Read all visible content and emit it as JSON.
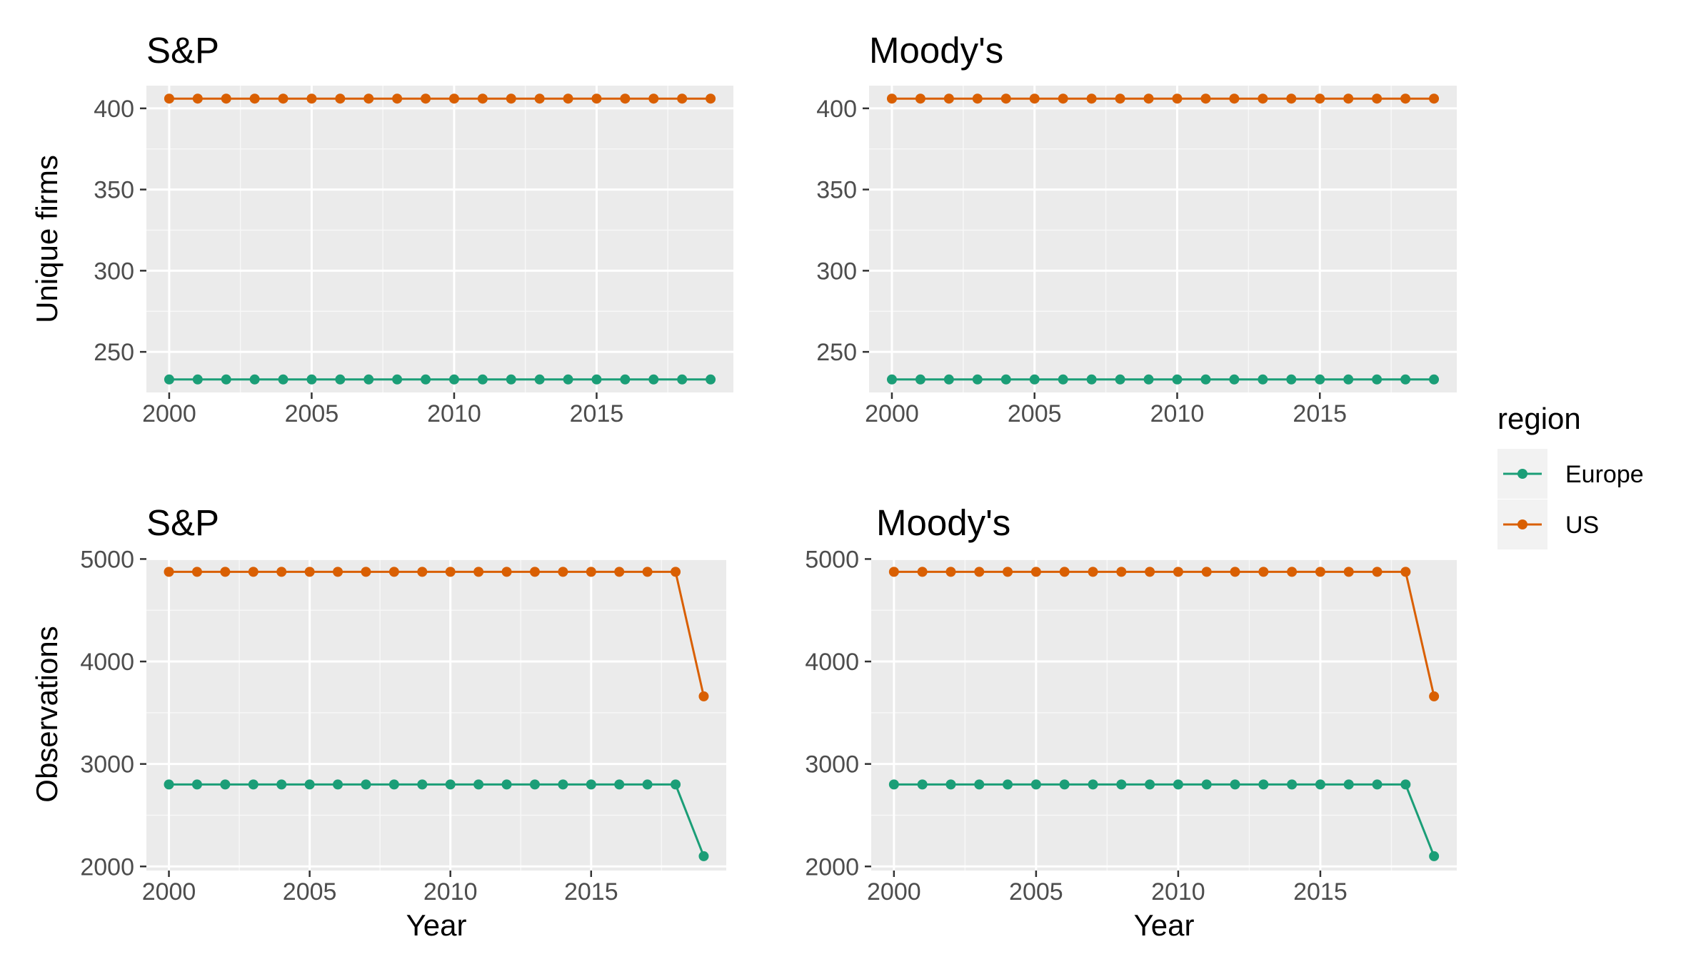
{
  "chart_data": [
    {
      "type": "line",
      "title": "S&P",
      "xlabel": "",
      "ylabel": "Unique firms",
      "xlim": [
        1999.2,
        2019.8
      ],
      "ylim": [
        225,
        414
      ],
      "xticks": [
        2000,
        2005,
        2010,
        2015
      ],
      "yticks": [
        250,
        300,
        350,
        400
      ],
      "grid": true,
      "x": [
        2000,
        2001,
        2002,
        2003,
        2004,
        2005,
        2006,
        2007,
        2008,
        2009,
        2010,
        2011,
        2012,
        2013,
        2014,
        2015,
        2016,
        2017,
        2018,
        2019
      ],
      "series": [
        {
          "name": "Europe",
          "color": "#1b9e77",
          "values": [
            233,
            233,
            233,
            233,
            233,
            233,
            233,
            233,
            233,
            233,
            233,
            233,
            233,
            233,
            233,
            233,
            233,
            233,
            233,
            233
          ]
        },
        {
          "name": "US",
          "color": "#d95f02",
          "values": [
            406,
            406,
            406,
            406,
            406,
            406,
            406,
            406,
            406,
            406,
            406,
            406,
            406,
            406,
            406,
            406,
            406,
            406,
            406,
            406
          ]
        }
      ]
    },
    {
      "type": "line",
      "title": "Moody's",
      "xlabel": "",
      "ylabel": "",
      "xlim": [
        1999.2,
        2019.8
      ],
      "ylim": [
        225,
        414
      ],
      "xticks": [
        2000,
        2005,
        2010,
        2015
      ],
      "yticks": [
        250,
        300,
        350,
        400
      ],
      "grid": true,
      "x": [
        2000,
        2001,
        2002,
        2003,
        2004,
        2005,
        2006,
        2007,
        2008,
        2009,
        2010,
        2011,
        2012,
        2013,
        2014,
        2015,
        2016,
        2017,
        2018,
        2019
      ],
      "series": [
        {
          "name": "Europe",
          "color": "#1b9e77",
          "values": [
            233,
            233,
            233,
            233,
            233,
            233,
            233,
            233,
            233,
            233,
            233,
            233,
            233,
            233,
            233,
            233,
            233,
            233,
            233,
            233
          ]
        },
        {
          "name": "US",
          "color": "#d95f02",
          "values": [
            406,
            406,
            406,
            406,
            406,
            406,
            406,
            406,
            406,
            406,
            406,
            406,
            406,
            406,
            406,
            406,
            406,
            406,
            406,
            406
          ]
        }
      ]
    },
    {
      "type": "line",
      "title": "S&P",
      "xlabel": "Year",
      "ylabel": "Observations",
      "xlim": [
        1999.2,
        2019.8
      ],
      "ylim": [
        1960,
        5010
      ],
      "xticks": [
        2000,
        2005,
        2010,
        2015
      ],
      "yticks": [
        2000,
        3000,
        4000,
        5000
      ],
      "grid": true,
      "x": [
        2000,
        2001,
        2002,
        2003,
        2004,
        2005,
        2006,
        2007,
        2008,
        2009,
        2010,
        2011,
        2012,
        2013,
        2014,
        2015,
        2016,
        2017,
        2018,
        2019
      ],
      "series": [
        {
          "name": "Europe",
          "color": "#1b9e77",
          "values": [
            2800,
            2800,
            2800,
            2800,
            2800,
            2800,
            2800,
            2800,
            2800,
            2800,
            2800,
            2800,
            2800,
            2800,
            2800,
            2800,
            2800,
            2800,
            2800,
            2100
          ]
        },
        {
          "name": "US",
          "color": "#d95f02",
          "values": [
            4875,
            4875,
            4875,
            4875,
            4875,
            4875,
            4875,
            4875,
            4875,
            4875,
            4875,
            4875,
            4875,
            4875,
            4875,
            4875,
            4875,
            4875,
            4875,
            3660
          ]
        }
      ]
    },
    {
      "type": "line",
      "title": "Moody's",
      "xlabel": "Year",
      "ylabel": "",
      "xlim": [
        1999.2,
        2019.8
      ],
      "ylim": [
        1960,
        5010
      ],
      "xticks": [
        2000,
        2005,
        2010,
        2015
      ],
      "yticks": [
        2000,
        3000,
        4000,
        5000
      ],
      "grid": true,
      "x": [
        2000,
        2001,
        2002,
        2003,
        2004,
        2005,
        2006,
        2007,
        2008,
        2009,
        2010,
        2011,
        2012,
        2013,
        2014,
        2015,
        2016,
        2017,
        2018,
        2019
      ],
      "series": [
        {
          "name": "Europe",
          "color": "#1b9e77",
          "values": [
            2800,
            2800,
            2800,
            2800,
            2800,
            2800,
            2800,
            2800,
            2800,
            2800,
            2800,
            2800,
            2800,
            2800,
            2800,
            2800,
            2800,
            2800,
            2800,
            2100
          ]
        },
        {
          "name": "US",
          "color": "#d95f02",
          "values": [
            4875,
            4875,
            4875,
            4875,
            4875,
            4875,
            4875,
            4875,
            4875,
            4875,
            4875,
            4875,
            4875,
            4875,
            4875,
            4875,
            4875,
            4875,
            4875,
            3660
          ]
        }
      ]
    }
  ],
  "legend": {
    "title": "region",
    "placement": "right",
    "items": [
      {
        "label": "Europe",
        "color": "#1b9e77"
      },
      {
        "label": "US",
        "color": "#d95f02"
      }
    ]
  }
}
